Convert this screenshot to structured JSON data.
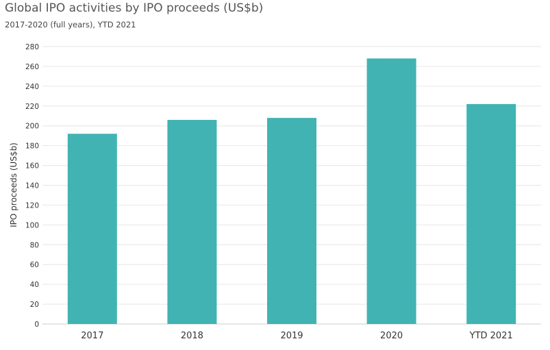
{
  "chart_data": {
    "type": "bar",
    "title": "Global IPO activities by IPO proceeds (US$b)",
    "subtitle": "2017-2020 (full years), YTD 2021",
    "xlabel": "",
    "ylabel": "IPO proceeds (US$b)",
    "categories": [
      "2017",
      "2018",
      "2019",
      "2020",
      "YTD 2021"
    ],
    "values": [
      192,
      206,
      208,
      268,
      222
    ],
    "ylim": [
      0,
      280
    ],
    "yticks": [
      0,
      20,
      40,
      60,
      80,
      100,
      120,
      140,
      160,
      180,
      200,
      220,
      240,
      260,
      280
    ],
    "grid": true,
    "bar_color": "#41b3b3",
    "grid_color": "#e6e6e6"
  }
}
